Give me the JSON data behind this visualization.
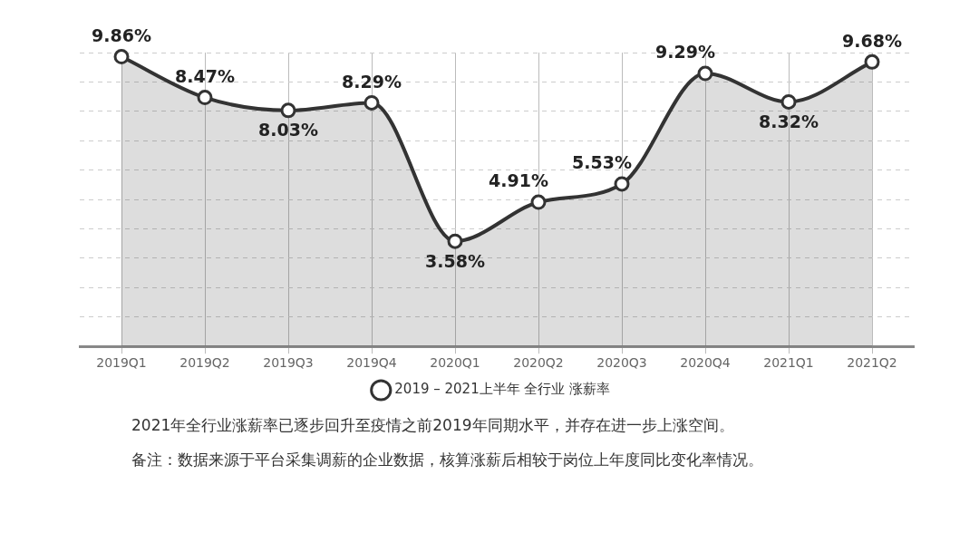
{
  "chart_data": {
    "type": "area",
    "categories": [
      "2019Q1",
      "2019Q2",
      "2019Q3",
      "2019Q4",
      "2020Q1",
      "2020Q2",
      "2020Q3",
      "2020Q4",
      "2021Q1",
      "2021Q2"
    ],
    "series": [
      {
        "name": "2019 – 2021上半年 全行业 涨薪率",
        "color": "#333333",
        "values": [
          9.86,
          8.47,
          8.03,
          8.29,
          3.58,
          4.91,
          5.53,
          9.29,
          8.32,
          9.68
        ],
        "value_labels": [
          "9.86%",
          "8.47%",
          "8.03%",
          "8.29%",
          "3.58%",
          "4.91%",
          "5.53%",
          "9.29%",
          "8.32%",
          "9.68%"
        ]
      }
    ],
    "tick_labels": "x",
    "grid": true,
    "legend": "bottom",
    "marker": "circle",
    "annotations": [
      "2021年全行业涨薪率已逐步回升至疫情之前2019年同期水平，并存在进一步上涨空间。",
      "备注：数据来源于平台采集调薪的企业数据，核算涨薪后相较于岗位上年度同比变化率情况。"
    ]
  }
}
